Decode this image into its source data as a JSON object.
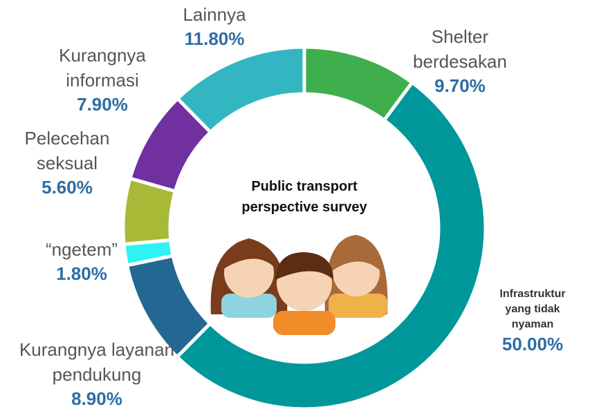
{
  "chart_data": {
    "type": "pie",
    "title": "Public transport perspective survey",
    "categories": [
      "Shelter berdesakan",
      "Infrastruktur yang tidak nyaman",
      "Kurangnya layanan pendukung",
      "“ngetem”",
      "Pelecehan seksual",
      "Kurangnya informasi",
      "Lainnya"
    ],
    "values": [
      9.7,
      50.0,
      8.9,
      1.8,
      5.6,
      7.9,
      11.8
    ],
    "value_labels": [
      "9.70%",
      "50.00%",
      "8.90%",
      "1.80%",
      "5.60%",
      "7.90%",
      "11.80%"
    ],
    "colors": [
      "#3fae4c",
      "#00979a",
      "#236892",
      "#2ef3f3",
      "#a8b837",
      "#7030a0",
      "#33b6c1"
    ],
    "donut": true
  }
}
